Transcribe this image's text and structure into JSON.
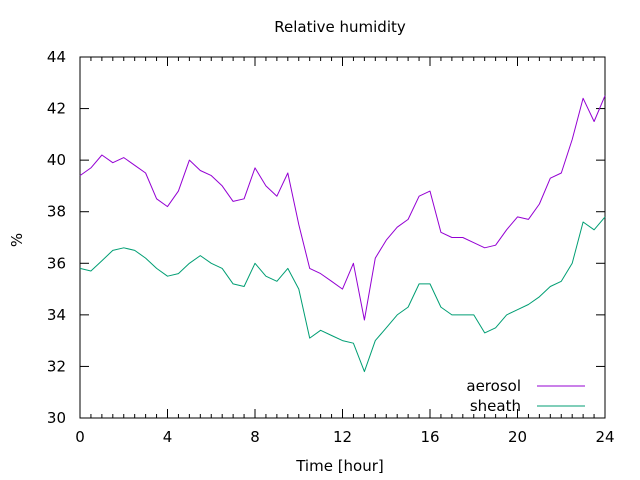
{
  "chart_data": {
    "type": "line",
    "title": "Relative humidity",
    "xlabel": "Time [hour]",
    "ylabel": "%",
    "xlim": [
      0,
      24
    ],
    "ylim": [
      30,
      44
    ],
    "xticks": [
      0,
      4,
      8,
      12,
      16,
      20,
      24
    ],
    "yticks": [
      30,
      32,
      34,
      36,
      38,
      40,
      42,
      44
    ],
    "grid": false,
    "legend_position": "bottom-right",
    "series": [
      {
        "name": "aerosol",
        "color": "#9400d3",
        "x": [
          0,
          0.5,
          1,
          1.5,
          2,
          2.5,
          3,
          3.5,
          4,
          4.5,
          5,
          5.5,
          6,
          6.5,
          7,
          7.5,
          8,
          8.5,
          9,
          9.5,
          10,
          10.5,
          11,
          11.5,
          12,
          12.5,
          13,
          13.5,
          14,
          14.5,
          15,
          15.5,
          16,
          16.5,
          17,
          17.5,
          18,
          18.5,
          19,
          19.5,
          20,
          20.5,
          21,
          21.5,
          22,
          22.5,
          23,
          23.5,
          24
        ],
        "values": [
          39.4,
          39.7,
          40.2,
          39.9,
          40.1,
          39.8,
          39.5,
          38.5,
          38.2,
          38.8,
          40.0,
          39.6,
          39.4,
          39.0,
          38.4,
          38.5,
          39.7,
          39.0,
          38.6,
          39.5,
          37.5,
          35.8,
          35.6,
          35.3,
          35.0,
          36.0,
          33.8,
          36.2,
          36.9,
          37.4,
          37.7,
          38.6,
          38.8,
          37.2,
          37.0,
          37.0,
          36.8,
          36.6,
          36.7,
          37.3,
          37.8,
          37.7,
          38.3,
          39.3,
          39.5,
          40.8,
          42.4,
          41.5,
          42.5
        ]
      },
      {
        "name": "sheath",
        "color": "#009e73",
        "x": [
          0,
          0.5,
          1,
          1.5,
          2,
          2.5,
          3,
          3.5,
          4,
          4.5,
          5,
          5.5,
          6,
          6.5,
          7,
          7.5,
          8,
          8.5,
          9,
          9.5,
          10,
          10.5,
          11,
          11.5,
          12,
          12.5,
          13,
          13.5,
          14,
          14.5,
          15,
          15.5,
          16,
          16.5,
          17,
          17.5,
          18,
          18.5,
          19,
          19.5,
          20,
          20.5,
          21,
          21.5,
          22,
          22.5,
          23,
          23.5,
          24
        ],
        "values": [
          35.8,
          35.7,
          36.1,
          36.5,
          36.6,
          36.5,
          36.2,
          35.8,
          35.5,
          35.6,
          36.0,
          36.3,
          36.0,
          35.8,
          35.2,
          35.1,
          36.0,
          35.5,
          35.3,
          35.8,
          35.0,
          33.1,
          33.4,
          33.2,
          33.0,
          32.9,
          31.8,
          33.0,
          33.5,
          34.0,
          34.3,
          35.2,
          35.2,
          34.3,
          34.0,
          34.0,
          34.0,
          33.3,
          33.5,
          34.0,
          34.2,
          34.4,
          34.7,
          35.1,
          35.3,
          36.0,
          37.6,
          37.3,
          37.8
        ]
      }
    ]
  }
}
